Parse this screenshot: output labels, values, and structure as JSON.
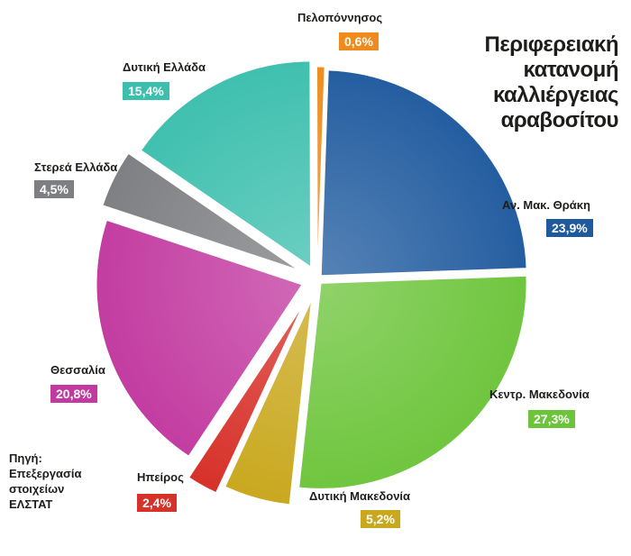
{
  "chart_data": {
    "type": "pie",
    "title_lines": [
      "Περιφερειακή",
      "κατανομή",
      "καλλιέργειας",
      "αραβοσίτου"
    ],
    "source_lines": [
      "Πηγή:",
      "Επεξεργασία",
      "στοιχείων",
      "ΕΛΣΤΑΤ"
    ],
    "slices": [
      {
        "name": "Αν. Μακ. Θράκη",
        "value": 23.9,
        "label": "23,9%",
        "color": "#1f5a9e"
      },
      {
        "name": "Κεντρ. Μακεδονία",
        "value": 27.3,
        "label": "27,3%",
        "color": "#6cc43a"
      },
      {
        "name": "Δυτική Μακεδονία",
        "value": 5.2,
        "label": "5,2%",
        "color": "#c9a81e"
      },
      {
        "name": "Ηπείρος",
        "value": 2.4,
        "label": "2,4%",
        "color": "#d7322a"
      },
      {
        "name": "Θεσσαλία",
        "value": 20.8,
        "label": "20,8%",
        "color": "#c23aa0"
      },
      {
        "name": "Στερεά Ελλάδα",
        "value": 4.5,
        "label": "4,5%",
        "color": "#7d7f82"
      },
      {
        "name": "Δυτική Ελλάδα",
        "value": 15.4,
        "label": "15,4%",
        "color": "#3dbfae"
      },
      {
        "name": "Πελοπόννησος",
        "value": 0.6,
        "label": "0,6%",
        "color": "#ef8a1c"
      }
    ]
  }
}
